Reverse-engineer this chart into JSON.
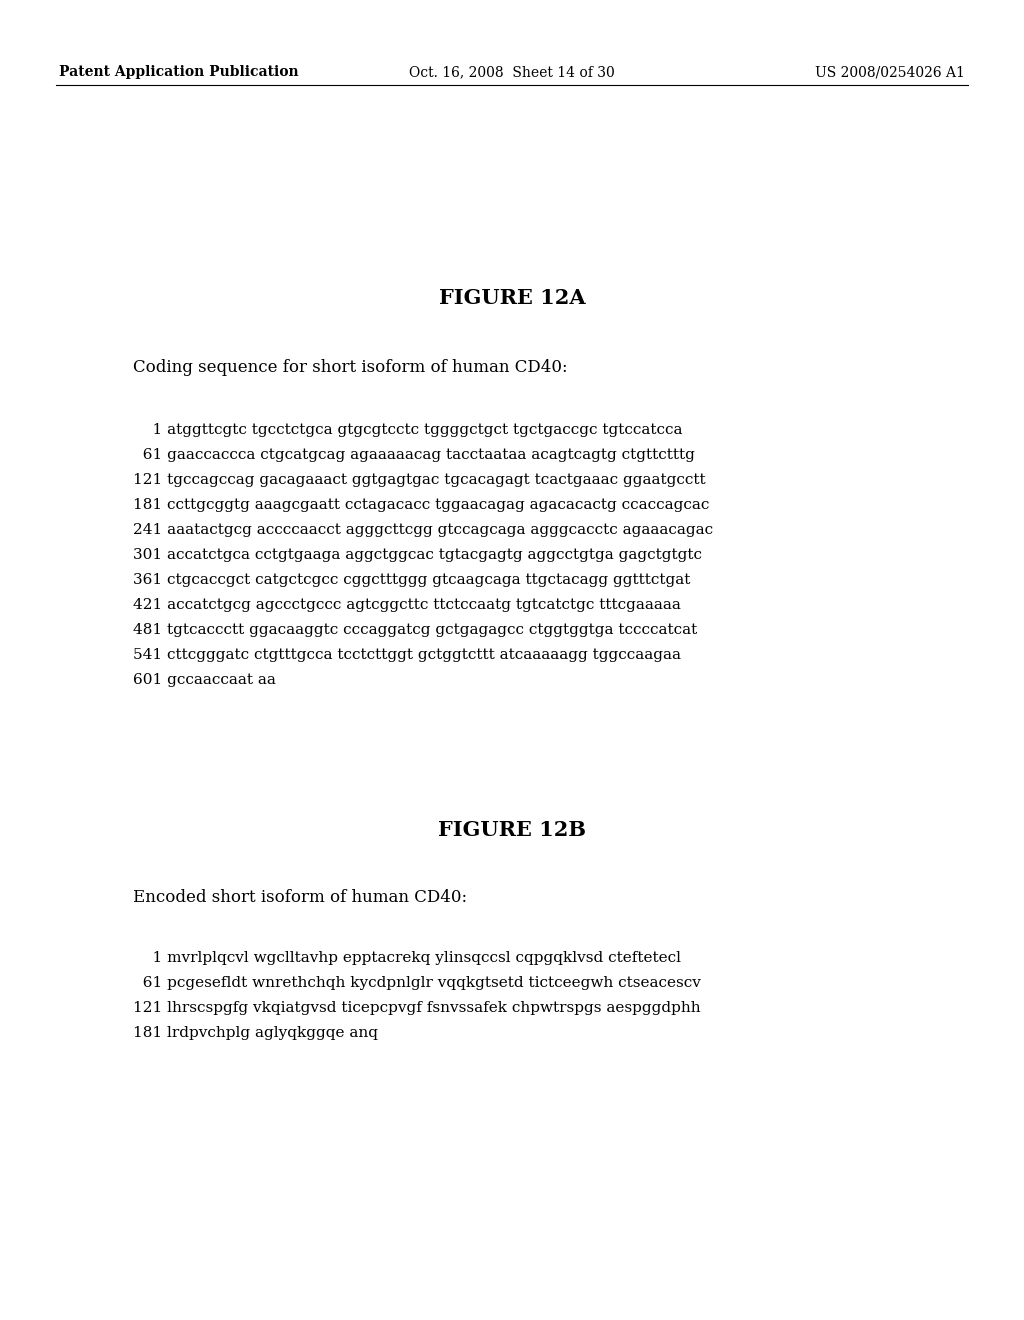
{
  "background_color": "#ffffff",
  "header_left": "Patent Application Publication",
  "header_middle": "Oct. 16, 2008  Sheet 14 of 30",
  "header_right": "US 2008/0254026 A1",
  "header_fontsize": 10,
  "fig12a_title": "FIGURE 12A",
  "fig12a_title_fontsize": 15,
  "fig12a_label": "Coding sequence for short isoform of human CD40:",
  "fig12a_label_fontsize": 12,
  "fig12a_lines": [
    "    1 atggttcgtc tgcctctgca gtgcgtcctc tggggctgct tgctgaccgc tgtccatcca",
    "  61 gaaccaccca ctgcatgcag agaaaaacag tacctaataa acagtcagtg ctgttctttg",
    "121 tgccagccag gacagaaact ggtgagtgac tgcacagagt tcactgaaac ggaatgcctt",
    "181 ccttgcggtg aaagcgaatt cctagacacc tggaacagag agacacactg ccaccagcac",
    "241 aaatactgcg accccaacct agggcttcgg gtccagcaga agggcacctc agaaacagac",
    "301 accatctgca cctgtgaaga aggctggcac tgtacgagtg aggcctgtga gagctgtgtc",
    "361 ctgcaccgct catgctcgcc cggctttggg gtcaagcaga ttgctacagg ggtttctgat",
    "421 accatctgcg agccctgccc agtcggcttc ttctccaatg tgtcatctgc tttcgaaaaa",
    "481 tgtcaccctt ggacaaggtc cccaggatcg gctgagagcc ctggtggtga tccccatcat",
    "541 cttcgggatc ctgtttgcca tcctcttggt gctggtcttt atcaaaaagg tggccaagaa",
    "601 gccaaccaat aa"
  ],
  "fig12a_seq_fontsize": 11,
  "fig12b_title": "FIGURE 12B",
  "fig12b_title_fontsize": 15,
  "fig12b_label": "Encoded short isoform of human CD40:",
  "fig12b_label_fontsize": 12,
  "fig12b_lines": [
    "    1 mvrlplqcvl wgclltavhp epptacrekq ylinsqccsl cqpgqklvsd cteftetecl",
    "  61 pcgesefldt wnrethchqh kycdpnlglr vqqkgtsetd tictceegwh ctseacescv",
    "121 lhrscspgfg vkqiatgvsd ticepcpvgf fsnvssafek chpwtrspgs aespggdphh",
    "181 lrdpvchplg aglyqkggqe anq"
  ],
  "fig12b_seq_fontsize": 11
}
